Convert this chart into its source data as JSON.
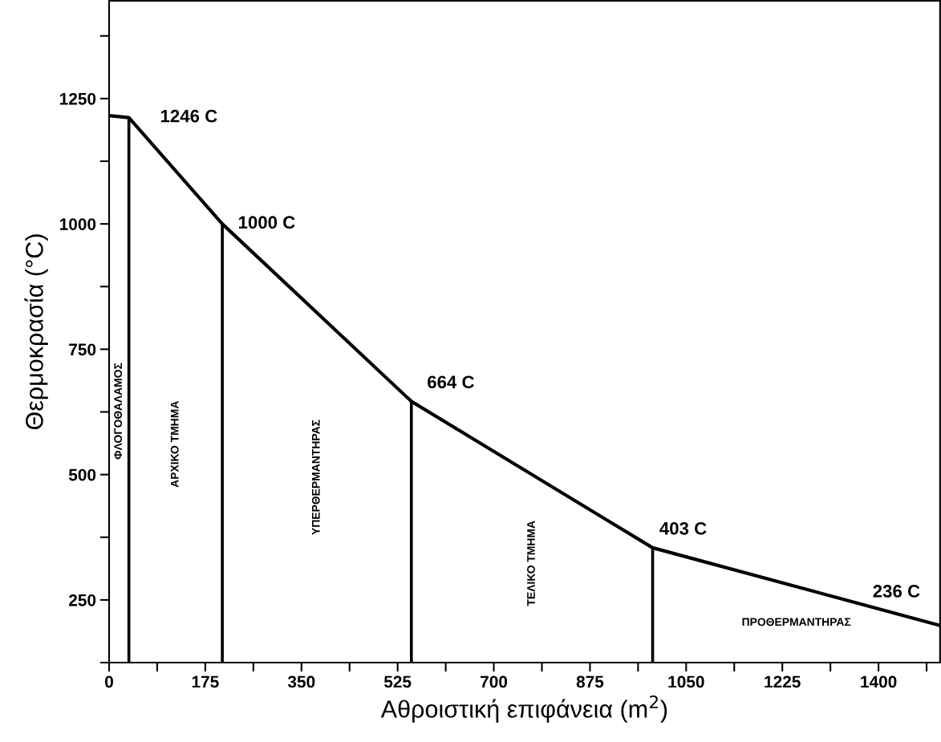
{
  "chart_data": {
    "type": "line",
    "xlabel": "Αθροιστική επιφάνεια (m$^{2}$)",
    "ylabel": "Θερμοκρασία (°C)",
    "series": [
      {
        "color": "#000000",
        "x": [
          0,
          36,
          206,
          550,
          989,
          1512
        ],
        "values": [
          1216,
          1212,
          1000,
          646,
          354,
          199
        ]
      },
      {
        "type": "bar",
        "color": "#000000",
        "x": [
          36,
          206,
          550,
          989
        ],
        "values": [
          1212,
          1000,
          646,
          354
        ]
      }
    ],
    "xlim": [
      0,
      1512
    ],
    "ylim": [
      125,
      1445
    ],
    "xticks": [
      0,
      {
        "value": 87.5,
        "label": null
      },
      175,
      {
        "value": 262.5,
        "label": null
      },
      350,
      {
        "value": 437.5,
        "label": null
      },
      525,
      {
        "value": 612.5,
        "label": null
      },
      700,
      {
        "value": 787.5,
        "label": null
      },
      875,
      {
        "value": 962.5,
        "label": null
      },
      1050,
      {
        "value": 1137.5,
        "label": null
      },
      1225,
      {
        "value": 1312.5,
        "label": null
      },
      1400,
      {
        "value": 1487.5,
        "label": null
      }
    ],
    "yticks": [
      {
        "value": 125,
        "label": null
      },
      250,
      {
        "value": 375,
        "label": null
      },
      500,
      {
        "value": 625,
        "label": null
      },
      750,
      {
        "value": 875,
        "label": null
      },
      1000,
      {
        "value": 1125,
        "label": null
      },
      1250,
      {
        "value": 1375,
        "label": null
      }
    ],
    "annotations": [
      {
        "text": "1246 C",
        "x": 36,
        "y": 1212
      },
      {
        "text": "1000 C",
        "x": 206,
        "y": 1000
      },
      {
        "text": "664 C",
        "x": 550,
        "y": 646
      },
      {
        "text": "403 C",
        "x": 989,
        "y": 354
      },
      {
        "text": "236 C",
        "x": 1442,
        "y": 220
      },
      "ΦΛΟΓΟΘΑΛΑΜΟΣ",
      "ΑΡΧΙΚΟ ΤΜΗΜΑ",
      "ΥΠΕΡΘΕΡΜΑΝΤΗΡΑΣ",
      "ΤΕΛΙΚΟ ΤΜΗΜΑ",
      "ΠΡΟΘΕΡΜΑΝΤΗΡΑΣ"
    ],
    "grid": false,
    "legend": false
  }
}
